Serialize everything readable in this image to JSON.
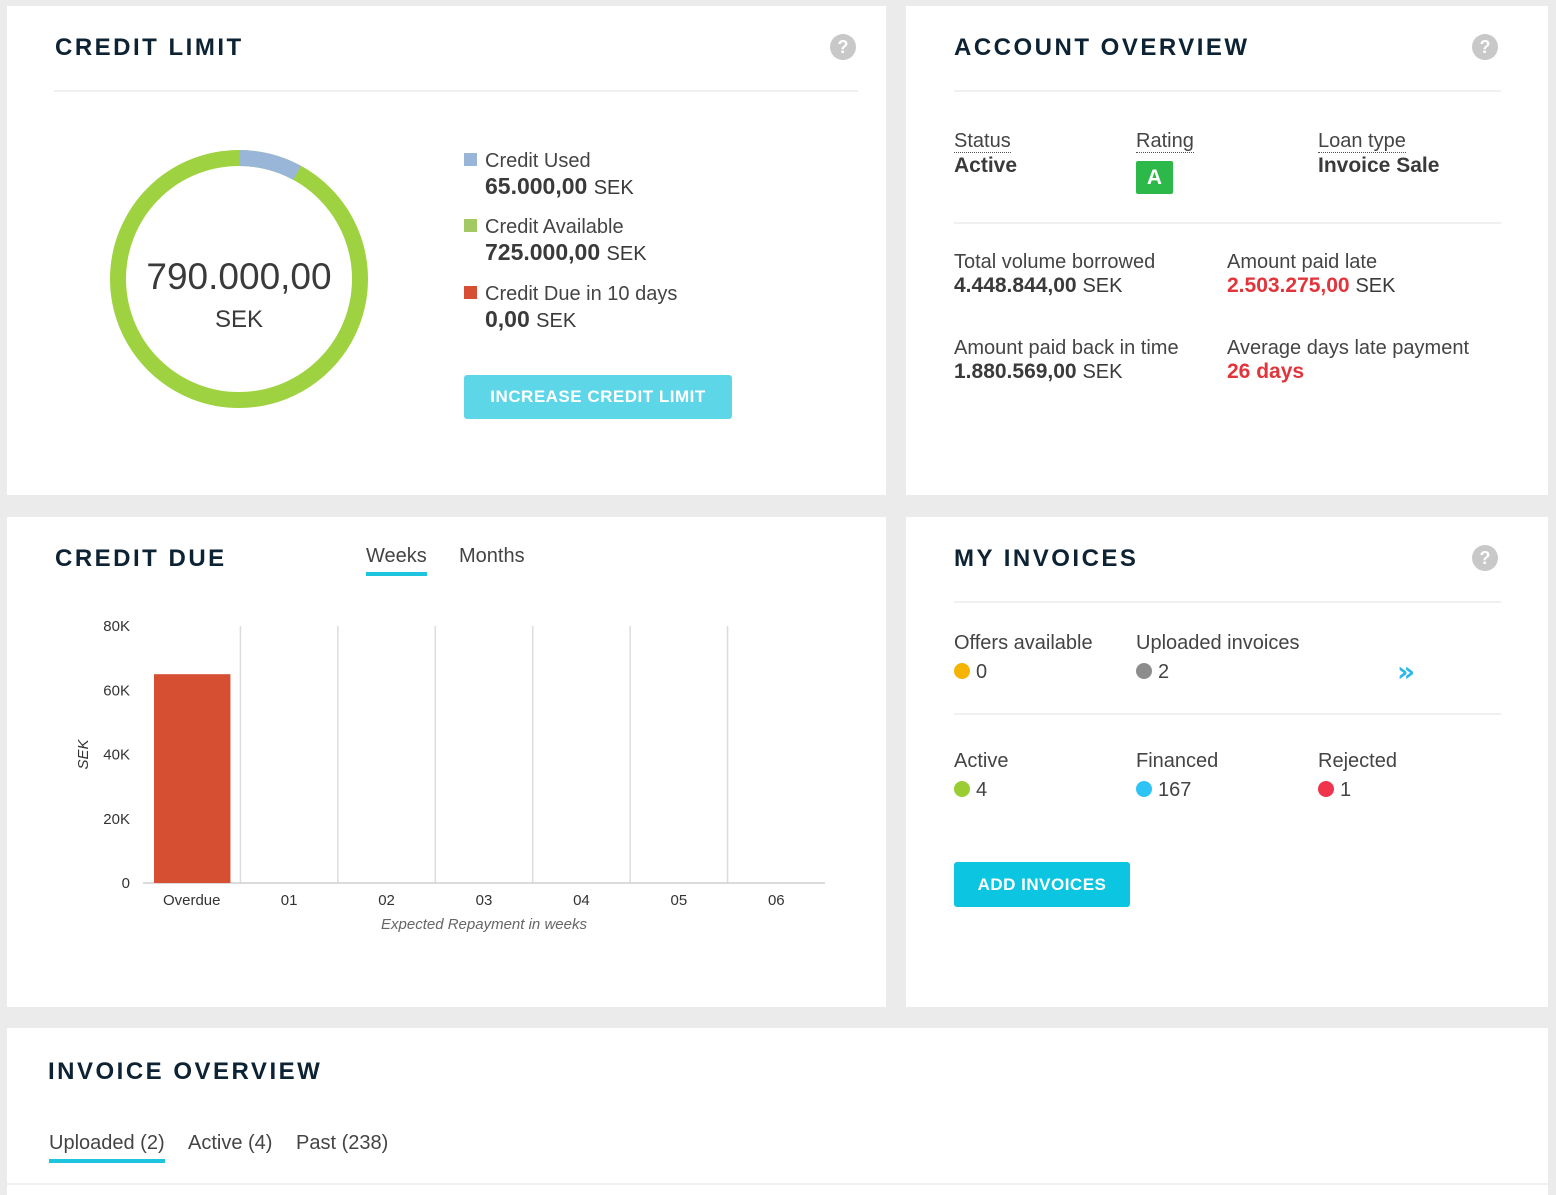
{
  "colors": {
    "used": "#99b6d8",
    "available": "#9fd240",
    "due": "#d64f33",
    "accent": "#1ec3dd",
    "red": "#e2343b",
    "rating": "#2db84a"
  },
  "credit_limit": {
    "title": "CREDIT LIMIT",
    "total": "790.000,00",
    "currency": "SEK",
    "donut": {
      "used": 65000,
      "available": 725000
    },
    "legend": [
      {
        "label": "Credit Used",
        "amount": "65.000,00",
        "unit": "SEK"
      },
      {
        "label": "Credit Available",
        "amount": "725.000,00",
        "unit": "SEK"
      },
      {
        "label": "Credit Due in 10 days",
        "amount": "0,00",
        "unit": "SEK"
      }
    ],
    "button": "INCREASE CREDIT LIMIT",
    "help_icon": "?"
  },
  "account_overview": {
    "title": "ACCOUNT OVERVIEW",
    "help_icon": "?",
    "status_label": "Status",
    "status": "Active",
    "rating_label": "Rating",
    "rating": "A",
    "loan_type_label": "Loan type",
    "loan_type": "Invoice Sale",
    "total_borrowed_label": "Total volume borrowed",
    "total_borrowed": "4.448.844,00",
    "paid_late_label": "Amount paid late",
    "paid_late": "2.503.275,00",
    "paid_in_time_label": "Amount paid back in time",
    "paid_in_time": "1.880.569,00",
    "avg_days_label": "Average days late payment",
    "avg_days": "26 days",
    "unit": "SEK"
  },
  "credit_due": {
    "title": "CREDIT DUE",
    "tabs": [
      "Weeks",
      "Months"
    ]
  },
  "chart_data": {
    "type": "bar",
    "categories": [
      "Overdue",
      "01",
      "02",
      "03",
      "04",
      "05",
      "06"
    ],
    "values": [
      65000,
      0,
      0,
      0,
      0,
      0,
      0
    ],
    "ylabel": "SEK",
    "xlabel": "Expected Repayment in weeks",
    "ylim": [
      0,
      80000
    ],
    "yticks": [
      0,
      20000,
      40000,
      60000,
      80000
    ],
    "ytick_labels": [
      "0",
      "20K",
      "40K",
      "60K",
      "80K"
    ],
    "bar_color": "#d64f33",
    "grid": true
  },
  "my_invoices": {
    "title": "MY INVOICES",
    "help_icon": "?",
    "offers_label": "Offers available",
    "offers": "0",
    "uploaded_label": "Uploaded invoices",
    "uploaded": "2",
    "active_label": "Active",
    "active": "4",
    "financed_label": "Financed",
    "financed": "167",
    "rejected_label": "Rejected",
    "rejected": "1",
    "dot_colors": {
      "offers": "#f5b400",
      "uploaded": "#8c8c8c",
      "active": "#9acd32",
      "financed": "#2ec3f5",
      "rejected": "#f0344c"
    },
    "button": "ADD INVOICES"
  },
  "invoice_overview": {
    "title": "INVOICE OVERVIEW",
    "tabs": [
      "Uploaded (2)",
      "Active (4)",
      "Past (238)"
    ]
  }
}
